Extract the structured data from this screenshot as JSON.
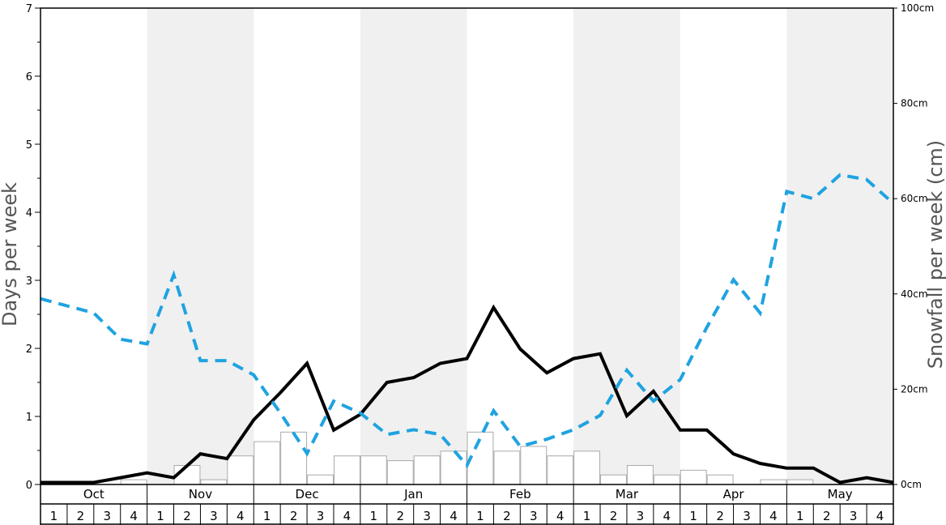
{
  "chart_data": {
    "type": "bar",
    "ylabel_left": "Days per week",
    "ylabel_right": "Snowfall per week (cm)",
    "ylim_left": [
      0,
      7
    ],
    "ylim_right": [
      0,
      100
    ],
    "left_ticks": [
      "0",
      "1",
      "2",
      "3",
      "4",
      "5",
      "6",
      "7"
    ],
    "right_ticks": [
      "0cm",
      "20cm",
      "40cm",
      "60cm",
      "80cm",
      "100cm"
    ],
    "months": [
      "Oct",
      "Nov",
      "Dec",
      "Jan",
      "Feb",
      "Mar",
      "Apr",
      "May"
    ],
    "week_labels": [
      "1",
      "2",
      "3",
      "4"
    ],
    "shaded_months": [
      "Nov",
      "Jan",
      "Mar",
      "May"
    ],
    "grid": false,
    "series": [
      {
        "kind": "bar",
        "axis": "right",
        "color": "#ffffff",
        "stroke": "#aaaaaa",
        "values": [
          0,
          0,
          0,
          1,
          0,
          4,
          1,
          6,
          9,
          11,
          2,
          6,
          6,
          5,
          6,
          7,
          11,
          7,
          8,
          6,
          7,
          2,
          4,
          2,
          3,
          2,
          0,
          1,
          1,
          0,
          0,
          0
        ]
      },
      {
        "kind": "line",
        "axis": "left",
        "color": "#000000",
        "style": "solid",
        "values": [
          0.03,
          0.03,
          0.03,
          0.1,
          0.17,
          0.1,
          0.45,
          0.38,
          0.95,
          1.35,
          1.78,
          0.8,
          1.03,
          1.5,
          1.57,
          1.78,
          1.85,
          2.6,
          1.99,
          1.64,
          1.85,
          1.92,
          1.01,
          1.37,
          0.8,
          0.8,
          0.45,
          0.31,
          0.24,
          0.24,
          0.03,
          0.1,
          0.03
        ]
      },
      {
        "kind": "line",
        "axis": "right",
        "color": "#1fa3e0",
        "style": "dashed",
        "values": [
          39,
          37.5,
          36,
          30.5,
          29.5,
          44,
          26,
          26,
          23,
          15,
          6.5,
          17.5,
          15,
          10.5,
          11.5,
          10.5,
          4,
          15.5,
          8,
          9.5,
          11.5,
          14.5,
          24,
          17.5,
          22,
          33,
          43,
          36,
          61.5,
          60,
          65,
          64,
          59
        ]
      }
    ]
  }
}
